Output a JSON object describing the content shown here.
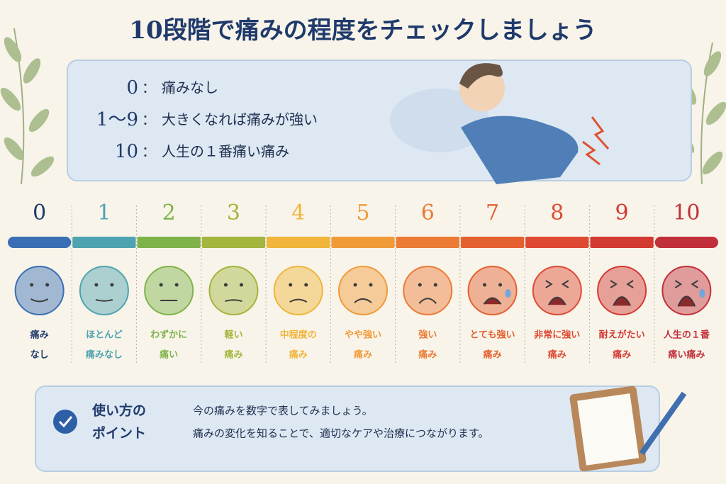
{
  "title": "10段階で痛みの程度をチェックしましょう",
  "legend": {
    "separator": "：",
    "items": [
      {
        "key": "0",
        "text": "痛みなし"
      },
      {
        "key": "1〜9",
        "text": "大きくなれば痛みが強い"
      },
      {
        "key": "10",
        "text": "人生の１番痛い痛み"
      }
    ]
  },
  "scale": {
    "levels": [
      {
        "number": "0",
        "label": [
          "痛み",
          "なし"
        ],
        "color": "#3a6fb5"
      },
      {
        "number": "1",
        "label": [
          "ほとんど",
          "痛みなし"
        ],
        "color": "#4ea3b0"
      },
      {
        "number": "2",
        "label": [
          "わずかに",
          "痛い"
        ],
        "color": "#7fb34a"
      },
      {
        "number": "3",
        "label": [
          "軽い",
          "痛み"
        ],
        "color": "#a3b53c"
      },
      {
        "number": "4",
        "label": [
          "中程度の",
          "痛み"
        ],
        "color": "#f0b53a"
      },
      {
        "number": "5",
        "label": [
          "やや強い",
          "痛み"
        ],
        "color": "#f19a38"
      },
      {
        "number": "6",
        "label": [
          "強い",
          "痛み"
        ],
        "color": "#ec7b35"
      },
      {
        "number": "7",
        "label": [
          "とても強い",
          "痛み"
        ],
        "color": "#e5602f"
      },
      {
        "number": "8",
        "label": [
          "非常に強い",
          "痛み"
        ],
        "color": "#de4a34"
      },
      {
        "number": "9",
        "label": [
          "耐えがたい",
          "痛み"
        ],
        "color": "#d33a32"
      },
      {
        "number": "10",
        "label": [
          "人生の１番",
          "痛い痛み"
        ],
        "color": "#c1303a"
      }
    ]
  },
  "point": {
    "heading": [
      "使い方の",
      "ポイント"
    ],
    "lines": [
      "今の痛みを数字で表してみましょう。",
      "痛みの変化を知ることで、適切なケアや治療につながります。"
    ]
  }
}
